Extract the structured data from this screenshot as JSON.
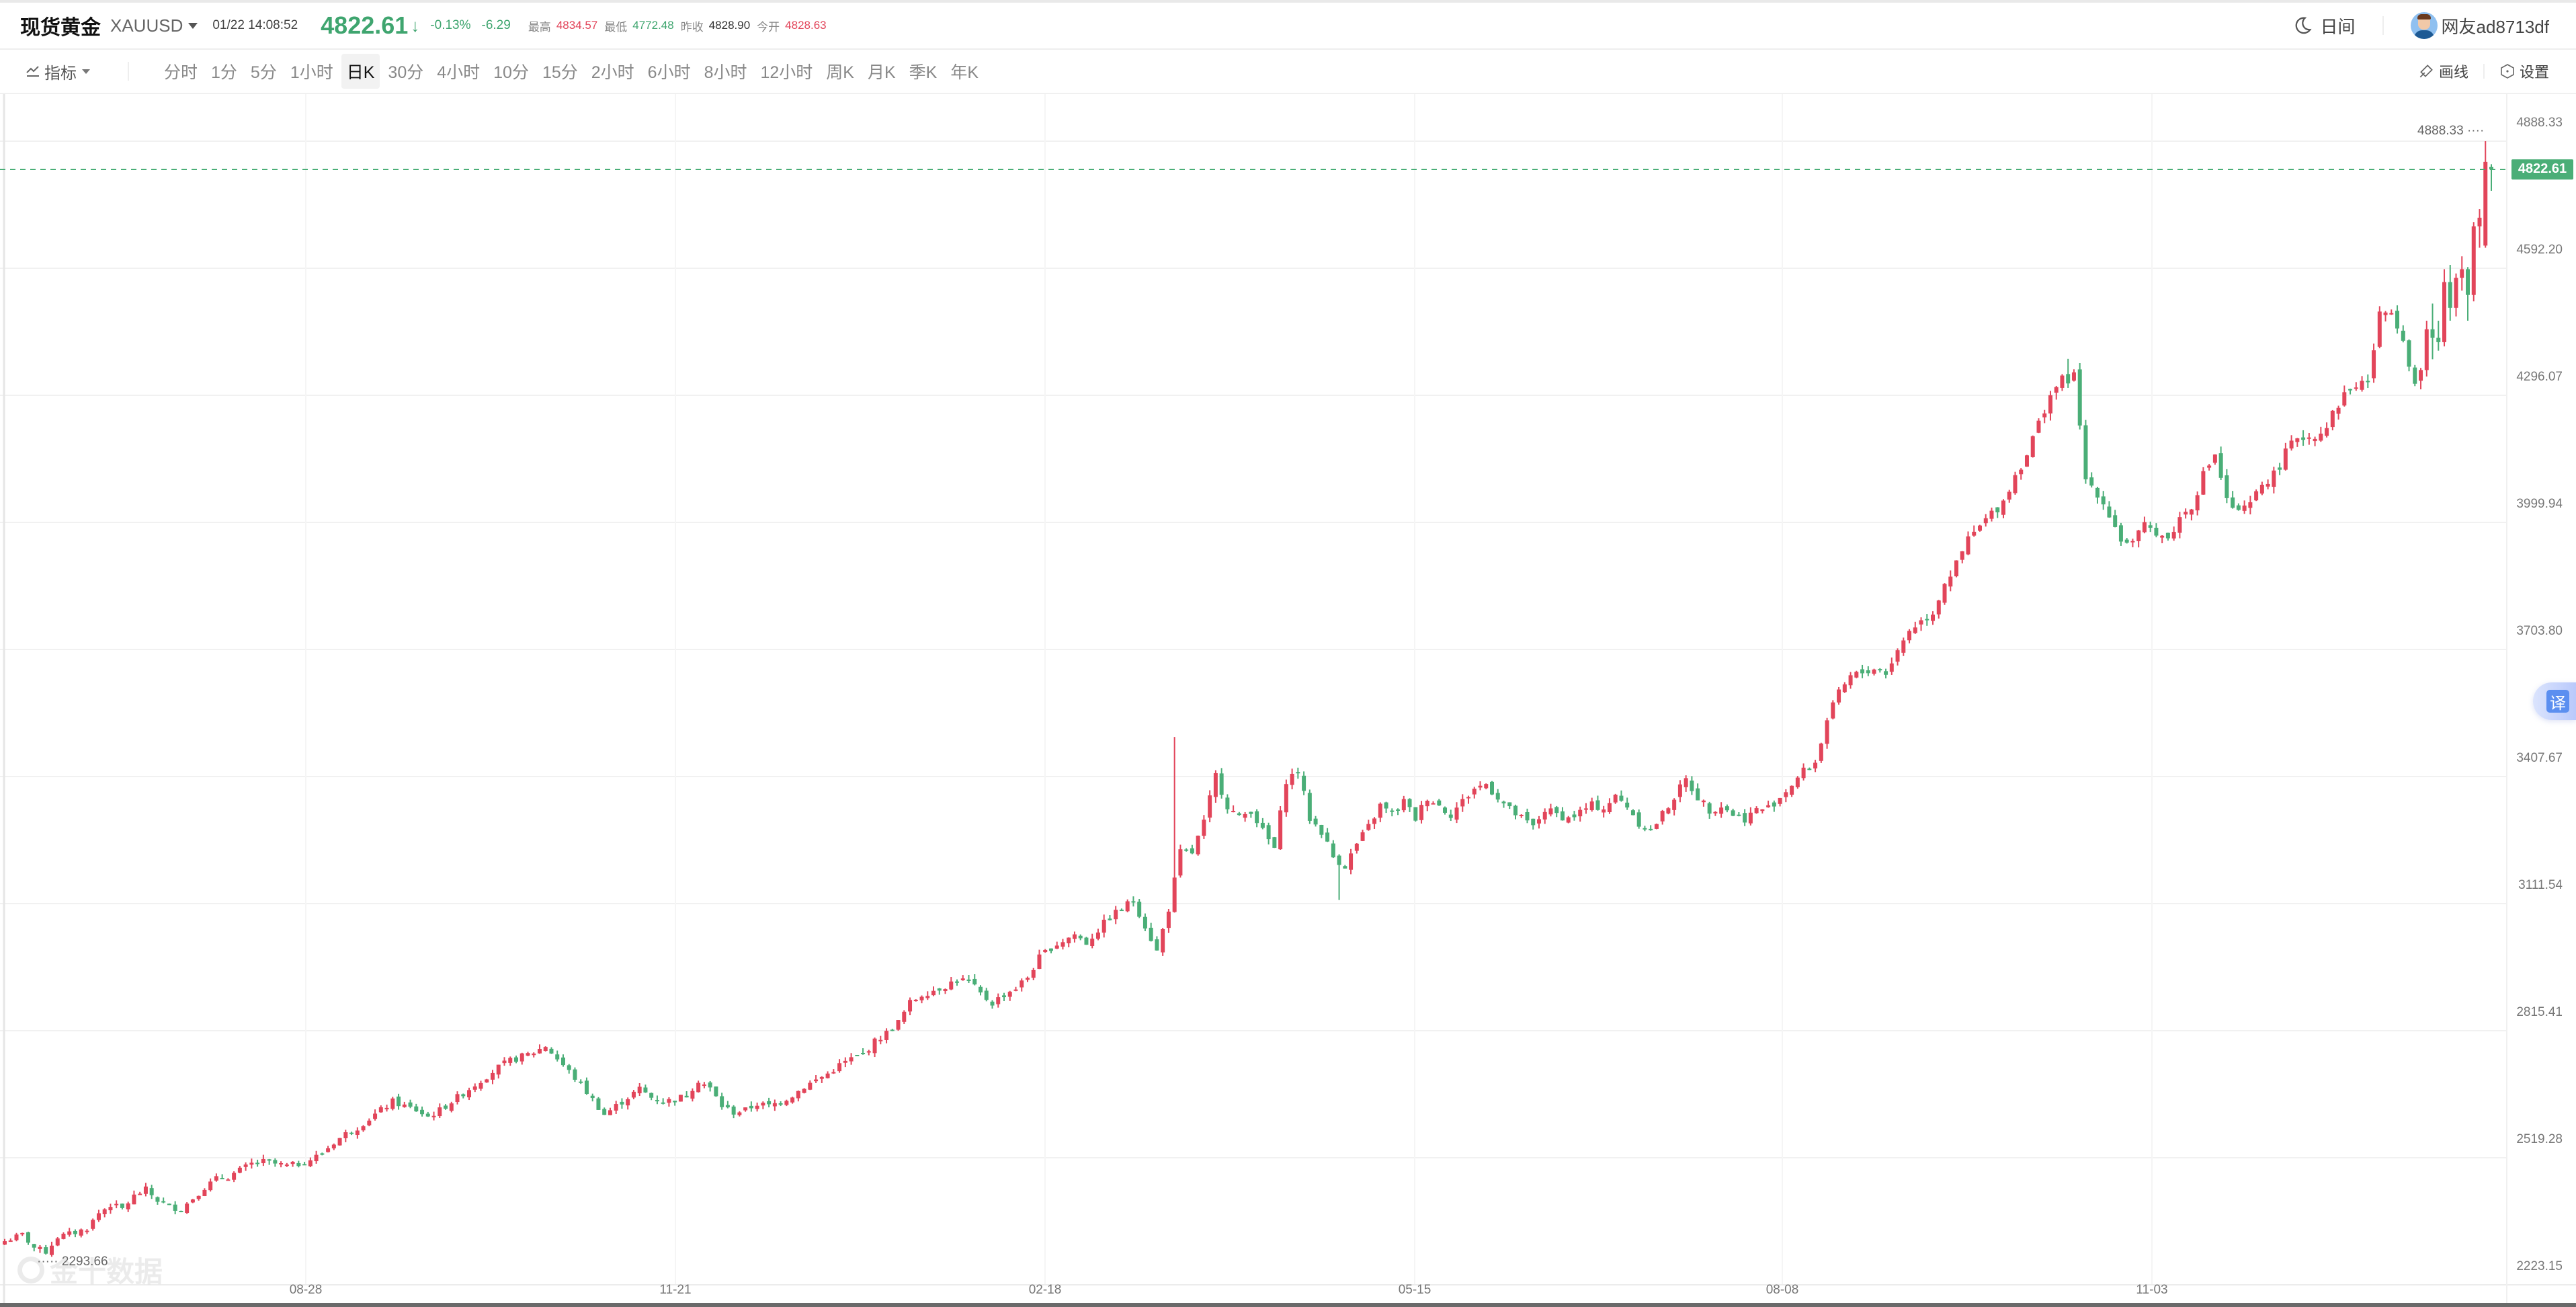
{
  "header": {
    "title": "现货黄金",
    "symbol": "XAUUSD",
    "datetime": "01/22 14:08:52",
    "price": "4822.61",
    "direction_icon": "arrow-down-icon",
    "change_pct": "-0.13%",
    "change_abs": "-6.29",
    "stats": [
      {
        "label": "最高",
        "value": "4834.57",
        "color": "#e2455a"
      },
      {
        "label": "最低",
        "value": "4772.48",
        "color": "#3fa56f"
      },
      {
        "label": "昨收",
        "value": "4828.90",
        "color": "#333333"
      },
      {
        "label": "今开",
        "value": "4828.63",
        "color": "#e2455a"
      }
    ],
    "theme_icon": "moon-icon",
    "theme_label": "日间",
    "username": "网友ad8713df"
  },
  "toolbar": {
    "indicator_label": "指标",
    "timeframes": [
      "分时",
      "1分",
      "5分",
      "1小时",
      "日K",
      "30分",
      "4小时",
      "10分",
      "15分",
      "2小时",
      "6小时",
      "8小时",
      "12小时",
      "周K",
      "月K",
      "季K",
      "年K"
    ],
    "active_timeframe": "日K",
    "draw_label": "画线",
    "settings_label": "设置"
  },
  "translate_button": {
    "label": "译"
  },
  "watermark": {
    "label": "金十数据"
  },
  "colors": {
    "up": "#e2455a",
    "down": "#4aae77",
    "last_price_line": "#4aae77",
    "grid": "#f0f0f0"
  },
  "chart_data": {
    "type": "candlestick",
    "title": "现货黄金 XAUUSD 日K",
    "xlabel": "",
    "ylabel": "",
    "ylim": [
      2223.15,
      4888.33
    ],
    "y_ticks": [
      "4888.33",
      "4592.20",
      "4296.07",
      "3999.94",
      "3703.80",
      "3407.67",
      "3111.54",
      "2815.41",
      "2519.28",
      "2223.15"
    ],
    "x_ticks": [
      {
        "label": "08-28",
        "x": 455
      },
      {
        "label": "11-21",
        "x": 1005
      },
      {
        "label": "02-18",
        "x": 1555
      },
      {
        "label": "05-15",
        "x": 2105
      },
      {
        "label": "08-08",
        "x": 2652
      },
      {
        "label": "11-03",
        "x": 3202
      }
    ],
    "grid": true,
    "last_price": 4822.61,
    "max_annotation": {
      "label": "4888.33",
      "x": 3692
    },
    "min_annotation": {
      "label": "2293.66",
      "x": 55
    },
    "candle_pitch": 9.15,
    "first_x": 7,
    "anchors_close": [
      [
        0,
        2325
      ],
      [
        3,
        2340
      ],
      [
        5,
        2310
      ],
      [
        7,
        2300
      ],
      [
        9,
        2335
      ],
      [
        12,
        2345
      ],
      [
        14,
        2355
      ],
      [
        16,
        2390
      ],
      [
        18,
        2410
      ],
      [
        20,
        2400
      ],
      [
        22,
        2430
      ],
      [
        24,
        2445
      ],
      [
        26,
        2420
      ],
      [
        28,
        2405
      ],
      [
        30,
        2400
      ],
      [
        32,
        2425
      ],
      [
        34,
        2450
      ],
      [
        36,
        2470
      ],
      [
        38,
        2475
      ],
      [
        40,
        2490
      ],
      [
        42,
        2505
      ],
      [
        44,
        2510
      ],
      [
        46,
        2505
      ],
      [
        48,
        2500
      ],
      [
        50,
        2505
      ],
      [
        52,
        2515
      ],
      [
        54,
        2530
      ],
      [
        56,
        2555
      ],
      [
        58,
        2575
      ],
      [
        60,
        2590
      ],
      [
        62,
        2610
      ],
      [
        64,
        2630
      ],
      [
        66,
        2650
      ],
      [
        68,
        2640
      ],
      [
        70,
        2630
      ],
      [
        72,
        2615
      ],
      [
        74,
        2630
      ],
      [
        76,
        2650
      ],
      [
        78,
        2670
      ],
      [
        80,
        2690
      ],
      [
        82,
        2710
      ],
      [
        84,
        2730
      ],
      [
        86,
        2745
      ],
      [
        88,
        2755
      ],
      [
        90,
        2765
      ],
      [
        92,
        2780
      ],
      [
        94,
        2750
      ],
      [
        96,
        2720
      ],
      [
        98,
        2690
      ],
      [
        100,
        2655
      ],
      [
        102,
        2620
      ],
      [
        104,
        2640
      ],
      [
        106,
        2660
      ],
      [
        108,
        2680
      ],
      [
        110,
        2660
      ],
      [
        112,
        2650
      ],
      [
        114,
        2655
      ],
      [
        116,
        2665
      ],
      [
        118,
        2700
      ],
      [
        120,
        2680
      ],
      [
        122,
        2640
      ],
      [
        124,
        2625
      ],
      [
        126,
        2630
      ],
      [
        128,
        2645
      ],
      [
        130,
        2640
      ],
      [
        132,
        2650
      ],
      [
        134,
        2665
      ],
      [
        136,
        2685
      ],
      [
        138,
        2700
      ],
      [
        140,
        2715
      ],
      [
        142,
        2735
      ],
      [
        144,
        2750
      ],
      [
        146,
        2760
      ],
      [
        148,
        2790
      ],
      [
        150,
        2810
      ],
      [
        152,
        2835
      ],
      [
        154,
        2880
      ],
      [
        156,
        2900
      ],
      [
        158,
        2910
      ],
      [
        160,
        2920
      ],
      [
        162,
        2935
      ],
      [
        164,
        2930
      ],
      [
        166,
        2900
      ],
      [
        168,
        2880
      ],
      [
        170,
        2900
      ],
      [
        172,
        2915
      ],
      [
        174,
        2940
      ],
      [
        176,
        2985
      ],
      [
        178,
        3010
      ],
      [
        180,
        3025
      ],
      [
        182,
        3040
      ],
      [
        184,
        3020
      ],
      [
        186,
        3050
      ],
      [
        188,
        3080
      ],
      [
        190,
        3100
      ],
      [
        192,
        3120
      ],
      [
        194,
        3060
      ],
      [
        196,
        3000
      ],
      [
        198,
        3100
      ],
      [
        200,
        3230
      ],
      [
        202,
        3230
      ],
      [
        204,
        3300
      ],
      [
        206,
        3410
      ],
      [
        208,
        3340
      ],
      [
        210,
        3310
      ],
      [
        212,
        3330
      ],
      [
        214,
        3280
      ],
      [
        216,
        3240
      ],
      [
        218,
        3400
      ],
      [
        220,
        3420
      ],
      [
        222,
        3310
      ],
      [
        224,
        3280
      ],
      [
        226,
        3220
      ],
      [
        228,
        3200
      ],
      [
        230,
        3250
      ],
      [
        232,
        3290
      ],
      [
        234,
        3340
      ],
      [
        236,
        3320
      ],
      [
        238,
        3350
      ],
      [
        240,
        3310
      ],
      [
        242,
        3360
      ],
      [
        244,
        3340
      ],
      [
        246,
        3320
      ],
      [
        248,
        3350
      ],
      [
        250,
        3380
      ],
      [
        252,
        3390
      ],
      [
        254,
        3360
      ],
      [
        256,
        3330
      ],
      [
        258,
        3310
      ],
      [
        260,
        3290
      ],
      [
        262,
        3330
      ],
      [
        264,
        3320
      ],
      [
        266,
        3310
      ],
      [
        268,
        3325
      ],
      [
        270,
        3340
      ],
      [
        272,
        3335
      ],
      [
        274,
        3360
      ],
      [
        276,
        3340
      ],
      [
        278,
        3300
      ],
      [
        280,
        3280
      ],
      [
        282,
        3320
      ],
      [
        284,
        3360
      ],
      [
        286,
        3400
      ],
      [
        288,
        3360
      ],
      [
        290,
        3330
      ],
      [
        292,
        3340
      ],
      [
        294,
        3320
      ],
      [
        296,
        3310
      ],
      [
        298,
        3330
      ],
      [
        300,
        3335
      ],
      [
        302,
        3360
      ],
      [
        304,
        3390
      ],
      [
        306,
        3420
      ],
      [
        308,
        3440
      ],
      [
        310,
        3540
      ],
      [
        312,
        3600
      ],
      [
        314,
        3640
      ],
      [
        316,
        3650
      ],
      [
        318,
        3660
      ],
      [
        320,
        3650
      ],
      [
        322,
        3700
      ],
      [
        324,
        3750
      ],
      [
        326,
        3770
      ],
      [
        328,
        3790
      ],
      [
        330,
        3860
      ],
      [
        332,
        3900
      ],
      [
        334,
        3960
      ],
      [
        336,
        3990
      ],
      [
        338,
        4020
      ],
      [
        340,
        4050
      ],
      [
        342,
        4110
      ],
      [
        344,
        4160
      ],
      [
        346,
        4230
      ],
      [
        348,
        4300
      ],
      [
        350,
        4330
      ],
      [
        352,
        4340
      ],
      [
        354,
        4100
      ],
      [
        356,
        4070
      ],
      [
        358,
        4020
      ],
      [
        360,
        3960
      ],
      [
        362,
        3950
      ],
      [
        364,
        3990
      ],
      [
        366,
        3980
      ],
      [
        368,
        3960
      ],
      [
        370,
        4010
      ],
      [
        372,
        4040
      ],
      [
        374,
        4110
      ],
      [
        376,
        4160
      ],
      [
        378,
        4050
      ],
      [
        380,
        4020
      ],
      [
        382,
        4040
      ],
      [
        384,
        4090
      ],
      [
        386,
        4110
      ],
      [
        388,
        4160
      ],
      [
        390,
        4200
      ],
      [
        392,
        4200
      ],
      [
        394,
        4210
      ],
      [
        396,
        4250
      ],
      [
        398,
        4300
      ],
      [
        400,
        4320
      ],
      [
        402,
        4330
      ],
      [
        404,
        4480
      ],
      [
        406,
        4500
      ],
      [
        408,
        4430
      ],
      [
        410,
        4320
      ]
    ],
    "tail_candles": [
      [
        4330,
        4360,
        4310,
        4355
      ],
      [
        4355,
        4470,
        4340,
        4450
      ],
      [
        4450,
        4510,
        4380,
        4430
      ],
      [
        4430,
        4470,
        4400,
        4420
      ],
      [
        4420,
        4590,
        4410,
        4560
      ],
      [
        4560,
        4600,
        4470,
        4500
      ],
      [
        4500,
        4580,
        4480,
        4570
      ],
      [
        4570,
        4620,
        4540,
        4590
      ],
      [
        4590,
        4595,
        4470,
        4530
      ],
      [
        4530,
        4700,
        4515,
        4690
      ],
      [
        4690,
        4730,
        4640,
        4710
      ],
      [
        4645,
        4888.33,
        4640,
        4840
      ],
      [
        4828.63,
        4834.57,
        4772.48,
        4822.61
      ]
    ],
    "notable_wicks": [
      {
        "index": 7,
        "low": 2293.66
      },
      {
        "index": 199,
        "high": 3500
      },
      {
        "index": 227,
        "low": 3120
      },
      {
        "index": 351,
        "high": 4381
      }
    ]
  }
}
